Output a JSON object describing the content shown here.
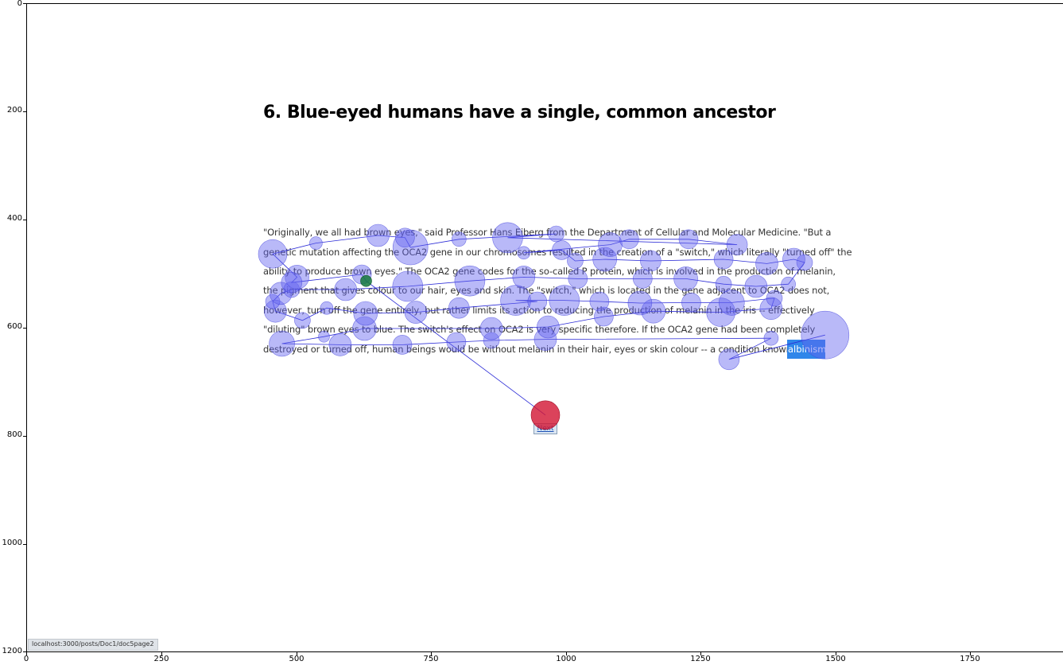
{
  "page": {
    "heading": "6. Blue-eyed humans have a single, common ancestor",
    "paragraph_lines": [
      "\"Originally, we all had brown eyes,\" said Professor Hans Eiberg from the Department of Cellular and Molecular Medicine. \"But a",
      "genetic mutation affecting the OCA2 gene in our chromosomes resulted in the creation of a \"switch,\" which literally \"turned off\" the",
      "ability to produce brown eyes.\" The OCA2 gene codes for the so-called P protein, which is involved in the production of melanin,",
      "the pigment that gives colour to our hair, eyes and skin. The \"switch,\" which is located in the gene adjacent to OCA2 does not,",
      "however, turn off the gene entirely, but rather limits its action to reducing the production of melanin in the iris -- effectively",
      "\"diluting\" brown eyes to blue. The switch's effect on OCA2 is very specific therefore. If the OCA2 gene had been completely",
      "destroyed or turned off, human beings would be without melanin in their hair, eyes or skin colour -- a condition known as"
    ],
    "highlighted_word": "albinism.",
    "next_label": "Next",
    "status_url": "localhost:3000/posts/Doc1/doc5page2"
  },
  "axes": {
    "x_ticks": [
      "0",
      "250",
      "500",
      "750",
      "1000",
      "1250",
      "1500",
      "1750"
    ],
    "y_ticks": [
      "0",
      "200",
      "400",
      "600",
      "800",
      "1000",
      "1200"
    ]
  },
  "chart_data": {
    "type": "scatter",
    "xlim": [
      0,
      1920
    ],
    "ylim": [
      1200,
      0
    ],
    "fixations": [
      {
        "x": 1478,
        "y": 612,
        "r": 30
      },
      {
        "x": 1300,
        "y": 657,
        "r": 13
      },
      {
        "x": 1378,
        "y": 618,
        "r": 9
      },
      {
        "x": 960,
        "y": 620,
        "r": 14
      },
      {
        "x": 860,
        "y": 622,
        "r": 10
      },
      {
        "x": 795,
        "y": 625,
        "r": 12
      },
      {
        "x": 695,
        "y": 630,
        "r": 12
      },
      {
        "x": 580,
        "y": 630,
        "r": 14
      },
      {
        "x": 472,
        "y": 628,
        "r": 16
      },
      {
        "x": 550,
        "y": 615,
        "r": 7
      },
      {
        "x": 625,
        "y": 600,
        "r": 15
      },
      {
        "x": 860,
        "y": 600,
        "r": 14
      },
      {
        "x": 965,
        "y": 597,
        "r": 14
      },
      {
        "x": 1068,
        "y": 578,
        "r": 12
      },
      {
        "x": 1160,
        "y": 568,
        "r": 15
      },
      {
        "x": 1285,
        "y": 570,
        "r": 18
      },
      {
        "x": 1378,
        "y": 563,
        "r": 14
      },
      {
        "x": 1384,
        "y": 544,
        "r": 10
      },
      {
        "x": 1305,
        "y": 552,
        "r": 16
      },
      {
        "x": 1230,
        "y": 552,
        "r": 12
      },
      {
        "x": 1135,
        "y": 553,
        "r": 15
      },
      {
        "x": 1060,
        "y": 550,
        "r": 12
      },
      {
        "x": 995,
        "y": 548,
        "r": 19
      },
      {
        "x": 905,
        "y": 548,
        "r": 19
      },
      {
        "x": 945,
        "y": 550,
        "r": 12
      },
      {
        "x": 800,
        "y": 562,
        "r": 13
      },
      {
        "x": 720,
        "y": 570,
        "r": 14
      },
      {
        "x": 627,
        "y": 572,
        "r": 15
      },
      {
        "x": 555,
        "y": 562,
        "r": 8
      },
      {
        "x": 510,
        "y": 585,
        "r": 10
      },
      {
        "x": 460,
        "y": 568,
        "r": 14
      },
      {
        "x": 455,
        "y": 550,
        "r": 9
      },
      {
        "x": 470,
        "y": 535,
        "r": 14
      },
      {
        "x": 490,
        "y": 528,
        "r": 10
      },
      {
        "x": 590,
        "y": 528,
        "r": 14
      },
      {
        "x": 705,
        "y": 522,
        "r": 19
      },
      {
        "x": 820,
        "y": 512,
        "r": 19
      },
      {
        "x": 920,
        "y": 505,
        "r": 14
      },
      {
        "x": 1020,
        "y": 508,
        "r": 12
      },
      {
        "x": 1140,
        "y": 508,
        "r": 12
      },
      {
        "x": 1220,
        "y": 508,
        "r": 15
      },
      {
        "x": 1290,
        "y": 518,
        "r": 10
      },
      {
        "x": 1350,
        "y": 522,
        "r": 14
      },
      {
        "x": 1410,
        "y": 518,
        "r": 9
      },
      {
        "x": 1440,
        "y": 478,
        "r": 10
      },
      {
        "x": 1420,
        "y": 472,
        "r": 14
      },
      {
        "x": 1370,
        "y": 480,
        "r": 14
      },
      {
        "x": 1290,
        "y": 472,
        "r": 12
      },
      {
        "x": 1155,
        "y": 475,
        "r": 13
      },
      {
        "x": 1070,
        "y": 472,
        "r": 15
      },
      {
        "x": 1015,
        "y": 475,
        "r": 10
      },
      {
        "x": 990,
        "y": 455,
        "r": 12
      },
      {
        "x": 920,
        "y": 460,
        "r": 8
      },
      {
        "x": 1080,
        "y": 445,
        "r": 15
      },
      {
        "x": 1115,
        "y": 435,
        "r": 12
      },
      {
        "x": 1225,
        "y": 435,
        "r": 12
      },
      {
        "x": 1315,
        "y": 445,
        "r": 13
      },
      {
        "x": 890,
        "y": 432,
        "r": 19
      },
      {
        "x": 980,
        "y": 425,
        "r": 10
      },
      {
        "x": 800,
        "y": 435,
        "r": 9
      },
      {
        "x": 710,
        "y": 450,
        "r": 22
      },
      {
        "x": 700,
        "y": 432,
        "r": 12
      },
      {
        "x": 650,
        "y": 428,
        "r": 14
      },
      {
        "x": 535,
        "y": 442,
        "r": 8
      },
      {
        "x": 455,
        "y": 462,
        "r": 18
      },
      {
        "x": 500,
        "y": 505,
        "r": 15
      },
      {
        "x": 490,
        "y": 515,
        "r": 13
      },
      {
        "x": 620,
        "y": 500,
        "r": 12
      },
      {
        "x": 628,
        "y": 512,
        "r": 7,
        "type": "start"
      },
      {
        "x": 960,
        "y": 760,
        "r": 18,
        "type": "end"
      }
    ]
  }
}
